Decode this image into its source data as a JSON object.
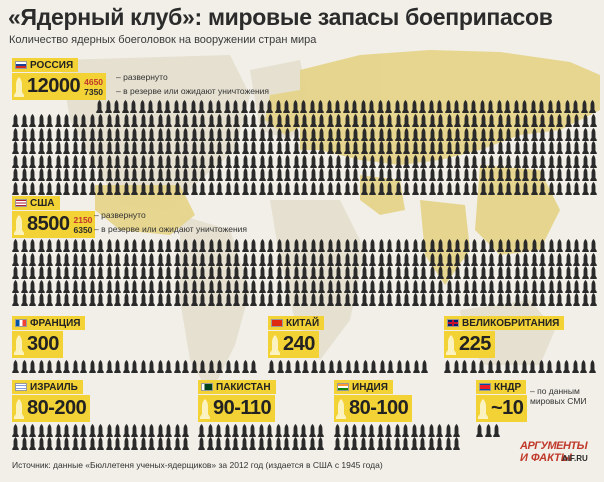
{
  "title": "«Ядерный клуб»: мировые запасы боеприпасов",
  "subtitle": "Количество ядерных боеголовок на вооружении стран мира",
  "colors": {
    "card": "#f3d235",
    "warhead": "#2a2a2a",
    "map": "#e6d48a",
    "deployed": "#c0392b"
  },
  "countries": [
    {
      "key": "russia",
      "name": "РОССИЯ",
      "flag": "ru-flag-icon",
      "total": "12000",
      "deployed": "4650",
      "reserve": "7350",
      "legend_deployed": "– развернуто",
      "legend_reserve": "– в резерве или ожидают уничтожения"
    },
    {
      "key": "usa",
      "name": "США",
      "flag": "us-flag-icon",
      "total": "8500",
      "deployed": "2150",
      "reserve": "6350",
      "legend_deployed": "– развернуто",
      "legend_reserve": "– в резерве или ожидают уничтожения"
    },
    {
      "key": "france",
      "name": "ФРАНЦИЯ",
      "flag": "fr-flag-icon",
      "total": "300"
    },
    {
      "key": "china",
      "name": "КИТАЙ",
      "flag": "cn-flag-icon",
      "total": "240"
    },
    {
      "key": "uk",
      "name": "ВЕЛИКОБРИТАНИЯ",
      "flag": "uk-flag-icon",
      "total": "225"
    },
    {
      "key": "israel",
      "name": "ИЗРАИЛЬ",
      "flag": "il-flag-icon",
      "total": "80-200"
    },
    {
      "key": "pakistan",
      "name": "ПАКИСТАН",
      "flag": "pk-flag-icon",
      "total": "90-110"
    },
    {
      "key": "india",
      "name": "ИНДИЯ",
      "flag": "in-flag-icon",
      "total": "80-100"
    },
    {
      "key": "dprk",
      "name": "КНДР",
      "flag": "kp-flag-icon",
      "total": "~10",
      "note": "– по данным мировых СМИ"
    }
  ],
  "source": "Источник: данные «Бюллетеня ученых-ядерщиков» за 2012 год (издается в США с 1945 года)",
  "logo": {
    "line1": "АРГУМЕНТЫ",
    "line2": "И ФАКТЫ",
    "domain": "AIF.RU"
  }
}
